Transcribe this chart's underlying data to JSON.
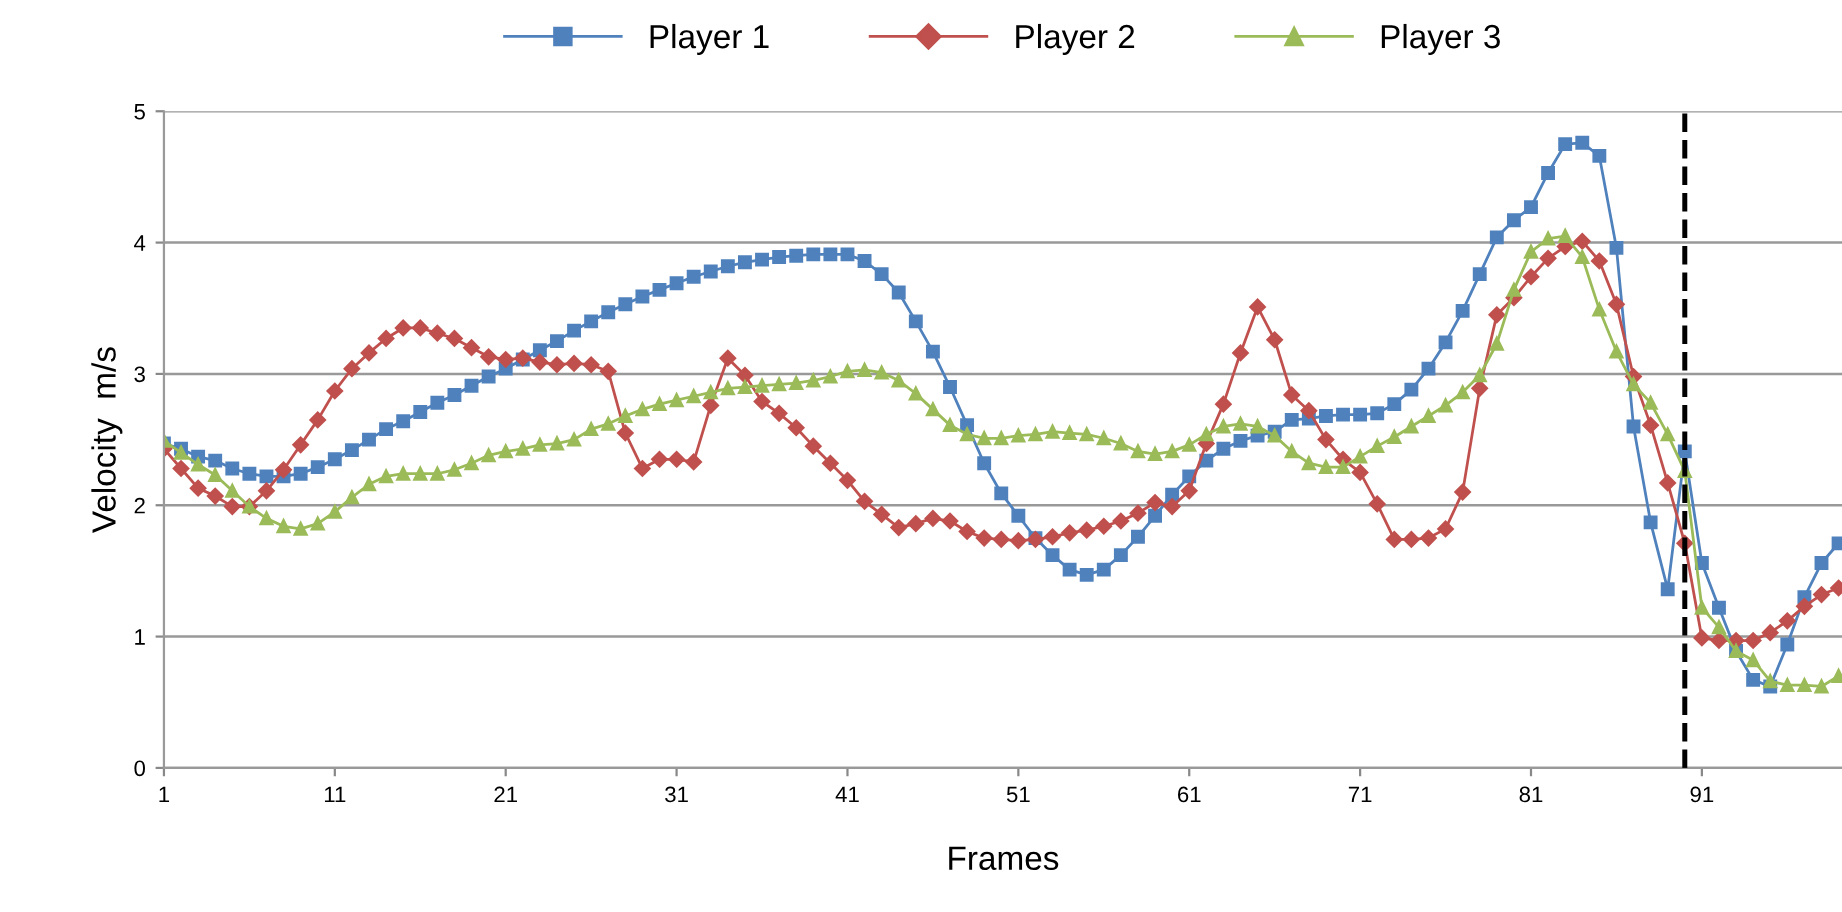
{
  "chart_data": {
    "type": "line",
    "xlabel": "Frames",
    "ylabel": "Velocity  m/s",
    "x": [
      1,
      2,
      3,
      4,
      5,
      6,
      7,
      8,
      9,
      10,
      11,
      12,
      13,
      14,
      15,
      16,
      17,
      18,
      19,
      20,
      21,
      22,
      23,
      24,
      25,
      26,
      27,
      28,
      29,
      30,
      31,
      32,
      33,
      34,
      35,
      36,
      37,
      38,
      39,
      40,
      41,
      42,
      43,
      44,
      45,
      46,
      47,
      48,
      49,
      50,
      51,
      52,
      53,
      54,
      55,
      56,
      57,
      58,
      59,
      60,
      61,
      62,
      63,
      64,
      65,
      66,
      67,
      68,
      69,
      70,
      71,
      72,
      73,
      74,
      75,
      76,
      77,
      78,
      79,
      80,
      81,
      82,
      83,
      84,
      85,
      86,
      87,
      88,
      89,
      90,
      91,
      92,
      93,
      94,
      95,
      96,
      97,
      98,
      99
    ],
    "series": [
      {
        "name": "Player 1",
        "color": "#4f81bd",
        "marker": "square",
        "values": [
          2.47,
          2.43,
          2.37,
          2.34,
          2.28,
          2.24,
          2.22,
          2.22,
          2.24,
          2.29,
          2.35,
          2.42,
          2.5,
          2.58,
          2.64,
          2.71,
          2.78,
          2.84,
          2.91,
          2.98,
          3.04,
          3.11,
          3.18,
          3.25,
          3.33,
          3.4,
          3.47,
          3.53,
          3.59,
          3.64,
          3.69,
          3.74,
          3.78,
          3.82,
          3.85,
          3.87,
          3.89,
          3.9,
          3.91,
          3.91,
          3.91,
          3.86,
          3.76,
          3.62,
          3.4,
          3.17,
          2.9,
          2.61,
          2.32,
          2.09,
          1.92,
          1.75,
          1.62,
          1.51,
          1.47,
          1.51,
          1.62,
          1.76,
          1.92,
          2.08,
          2.22,
          2.34,
          2.43,
          2.49,
          2.53,
          2.56,
          2.65,
          2.66,
          2.68,
          2.69,
          2.69,
          2.7,
          2.77,
          2.88,
          3.04,
          3.24,
          3.48,
          3.76,
          4.04,
          4.17,
          4.27,
          4.53,
          4.75,
          4.76,
          4.66,
          3.96,
          2.6,
          1.87,
          1.36,
          2.41,
          1.56,
          1.22,
          0.89,
          0.67,
          0.62,
          0.94,
          1.3,
          1.56,
          1.71
        ]
      },
      {
        "name": "Player 2",
        "color": "#c0504d",
        "marker": "diamond",
        "values": [
          2.43,
          2.28,
          2.13,
          2.07,
          1.99,
          1.99,
          2.11,
          2.27,
          2.46,
          2.65,
          2.87,
          3.04,
          3.16,
          3.27,
          3.35,
          3.35,
          3.31,
          3.27,
          3.2,
          3.13,
          3.11,
          3.12,
          3.09,
          3.07,
          3.08,
          3.07,
          3.02,
          2.55,
          2.28,
          2.35,
          2.35,
          2.33,
          2.76,
          3.12,
          2.99,
          2.79,
          2.7,
          2.59,
          2.45,
          2.32,
          2.19,
          2.03,
          1.93,
          1.83,
          1.86,
          1.9,
          1.88,
          1.8,
          1.75,
          1.74,
          1.73,
          1.74,
          1.76,
          1.79,
          1.81,
          1.84,
          1.88,
          1.94,
          2.02,
          1.99,
          2.11,
          2.47,
          2.77,
          3.16,
          3.51,
          3.26,
          2.84,
          2.72,
          2.5,
          2.35,
          2.25,
          2.01,
          1.74,
          1.74,
          1.75,
          1.82,
          2.1,
          2.89,
          3.45,
          3.58,
          3.74,
          3.88,
          3.97,
          4.01,
          3.86,
          3.53,
          2.98,
          2.61,
          2.17,
          1.71,
          0.99,
          0.97,
          0.97,
          0.97,
          1.03,
          1.12,
          1.23,
          1.32,
          1.37
        ]
      },
      {
        "name": "Player 3",
        "color": "#9bbb59",
        "marker": "triangle",
        "values": [
          2.49,
          2.4,
          2.31,
          2.23,
          2.11,
          1.99,
          1.9,
          1.84,
          1.82,
          1.86,
          1.95,
          2.06,
          2.16,
          2.22,
          2.24,
          2.24,
          2.24,
          2.27,
          2.32,
          2.38,
          2.41,
          2.43,
          2.46,
          2.47,
          2.5,
          2.58,
          2.62,
          2.68,
          2.73,
          2.77,
          2.8,
          2.83,
          2.86,
          2.89,
          2.9,
          2.91,
          2.92,
          2.93,
          2.95,
          2.98,
          3.02,
          3.03,
          3.01,
          2.95,
          2.85,
          2.73,
          2.61,
          2.54,
          2.51,
          2.51,
          2.53,
          2.54,
          2.56,
          2.55,
          2.54,
          2.51,
          2.47,
          2.41,
          2.39,
          2.41,
          2.46,
          2.54,
          2.6,
          2.62,
          2.6,
          2.53,
          2.41,
          2.32,
          2.29,
          2.29,
          2.37,
          2.45,
          2.52,
          2.6,
          2.68,
          2.76,
          2.86,
          2.99,
          3.23,
          3.64,
          3.93,
          4.03,
          4.05,
          3.89,
          3.49,
          3.17,
          2.92,
          2.78,
          2.54,
          2.26,
          1.22,
          1.07,
          0.89,
          0.82,
          0.66,
          0.63,
          0.63,
          0.62,
          0.7
        ]
      }
    ],
    "xlim": [
      1,
      99.2
    ],
    "xticks": [
      1,
      11,
      21,
      31,
      41,
      51,
      61,
      71,
      81,
      91
    ],
    "ylim": [
      0,
      5
    ],
    "yticks": [
      0,
      1,
      2,
      3,
      4,
      5
    ],
    "grid": "y",
    "legend": "top",
    "line_style": "solid",
    "ref_lines": [
      {
        "axis": "x",
        "value": 90,
        "color": "#000000",
        "line_style": "dashed"
      }
    ]
  }
}
